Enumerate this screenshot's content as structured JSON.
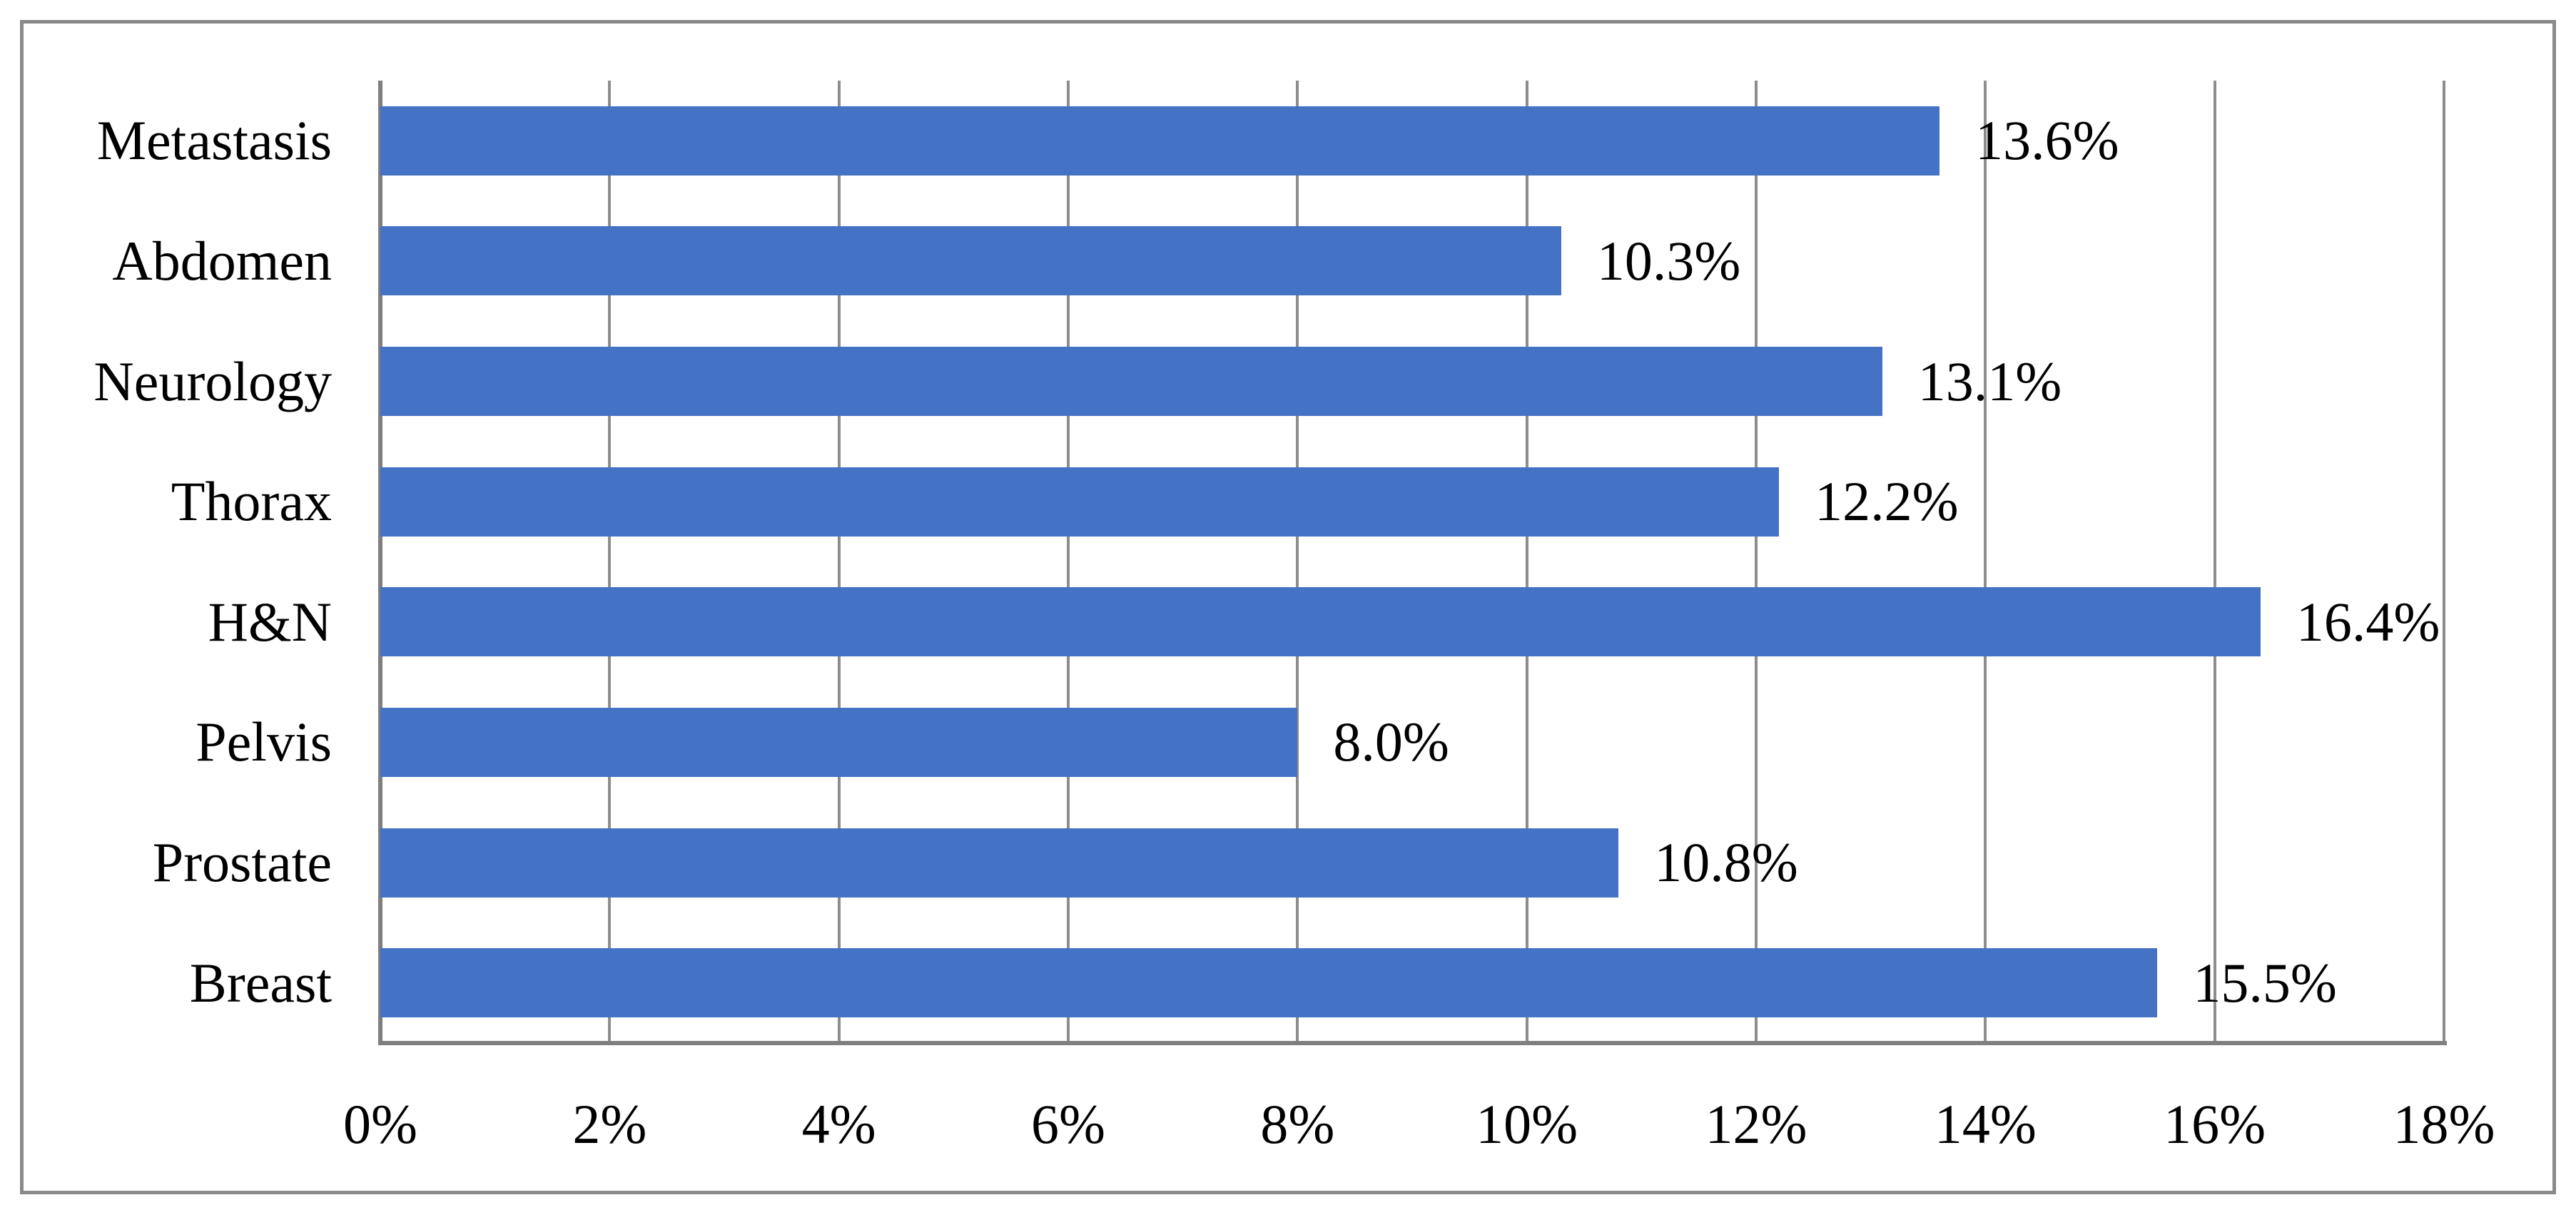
{
  "figure": {
    "background": "#ffffff",
    "border_color": "#8a8a8a"
  },
  "chart_data": {
    "type": "bar",
    "orientation": "horizontal",
    "title": "",
    "xlabel": "",
    "ylabel": "",
    "categories": [
      "Metastasis",
      "Abdomen",
      "Neurology",
      "Thorax",
      "H&N",
      "Pelvis",
      "Prostate",
      "Breast"
    ],
    "values": [
      13.6,
      10.3,
      13.1,
      12.2,
      16.4,
      8.0,
      10.8,
      15.5
    ],
    "data_labels": [
      "13.6%",
      "10.3%",
      "13.1%",
      "12.2%",
      "16.4%",
      "8.0%",
      "10.8%",
      "15.5%"
    ],
    "x_ticks": [
      "0%",
      "2%",
      "4%",
      "6%",
      "8%",
      "10%",
      "12%",
      "14%",
      "16%",
      "18%"
    ],
    "x_tick_values": [
      0,
      2,
      4,
      6,
      8,
      10,
      12,
      14,
      16,
      18
    ],
    "xlim": [
      0,
      18
    ],
    "grid": true,
    "legend": false,
    "bar_color": "#4472C4",
    "gridline_color": "#8d8d8d",
    "axis_color": "#7f7f7f",
    "label_color": "#000000"
  }
}
